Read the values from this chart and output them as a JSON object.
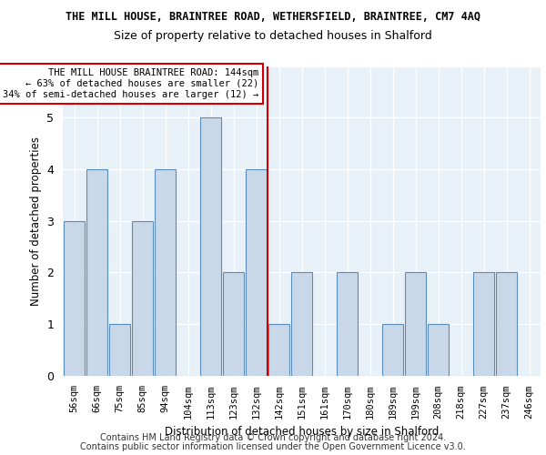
{
  "title1": "THE MILL HOUSE, BRAINTREE ROAD, WETHERSFIELD, BRAINTREE, CM7 4AQ",
  "title2": "Size of property relative to detached houses in Shalford",
  "xlabel": "Distribution of detached houses by size in Shalford",
  "ylabel": "Number of detached properties",
  "categories": [
    "56sqm",
    "66sqm",
    "75sqm",
    "85sqm",
    "94sqm",
    "104sqm",
    "113sqm",
    "123sqm",
    "132sqm",
    "142sqm",
    "151sqm",
    "161sqm",
    "170sqm",
    "180sqm",
    "189sqm",
    "199sqm",
    "208sqm",
    "218sqm",
    "227sqm",
    "237sqm",
    "246sqm"
  ],
  "values": [
    3,
    4,
    1,
    3,
    4,
    0,
    5,
    2,
    4,
    1,
    2,
    0,
    2,
    0,
    1,
    2,
    1,
    0,
    2,
    2,
    0
  ],
  "bar_color": "#c8d8e8",
  "bar_edge_color": "#5b8db8",
  "red_line_color": "#cc0000",
  "property_bin_index": 8,
  "annotation_text": "THE MILL HOUSE BRAINTREE ROAD: 144sqm\n← 63% of detached houses are smaller (22)\n34% of semi-detached houses are larger (12) →",
  "annotation_box_color": "#ffffff",
  "annotation_border_color": "#cc0000",
  "footer1": "Contains HM Land Registry data © Crown copyright and database right 2024.",
  "footer2": "Contains public sector information licensed under the Open Government Licence v3.0.",
  "ylim": [
    0,
    6
  ],
  "yticks": [
    0,
    1,
    2,
    3,
    4,
    5,
    6
  ],
  "bg_color": "#e8f0f8",
  "grid_color": "#ffffff"
}
